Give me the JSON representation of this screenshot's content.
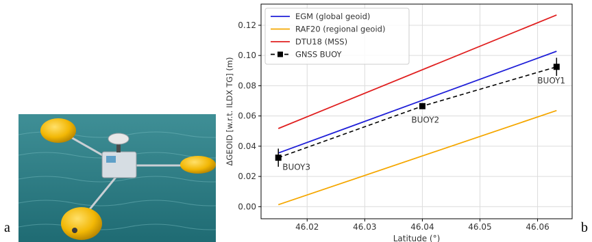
{
  "panels": {
    "a": "a",
    "b": "b"
  },
  "photo": {
    "subject": "buoy-with-gnss-antenna",
    "colors": {
      "sea": "#2f7f86",
      "float": "#f2b705",
      "housing": "#d6dde3"
    }
  },
  "chart_data": {
    "type": "line",
    "title": "",
    "xlabel": "Latitude (°)",
    "ylabel": "ΔGEOID [w.r.t. ILDX TG] (m)",
    "xlim": [
      46.012,
      46.066
    ],
    "ylim": [
      -0.008,
      0.134
    ],
    "x_ticks": [
      46.02,
      46.03,
      46.04,
      46.05,
      46.06
    ],
    "x_tick_labels": [
      "46.02",
      "46.03",
      "46.04",
      "46.05",
      "46.06"
    ],
    "y_ticks": [
      0.0,
      0.02,
      0.04,
      0.06,
      0.08,
      0.1,
      0.12
    ],
    "y_tick_labels": [
      "0.00",
      "0.02",
      "0.04",
      "0.06",
      "0.08",
      "0.10",
      "0.12"
    ],
    "grid": true,
    "legend_position": "top-left",
    "series": [
      {
        "name": "EGM (global geoid)",
        "color": "#1f1fd8",
        "style": "solid",
        "x": [
          46.015,
          46.0633
        ],
        "y": [
          0.0355,
          0.1028
        ]
      },
      {
        "name": "RAF20 (regional geoid)",
        "color": "#f5a700",
        "style": "solid",
        "x": [
          46.015,
          46.0633
        ],
        "y": [
          0.0013,
          0.0636
        ]
      },
      {
        "name": "DTU18 (MSS)",
        "color": "#e01f1f",
        "style": "solid",
        "x": [
          46.015,
          46.0633
        ],
        "y": [
          0.0517,
          0.1268
        ]
      },
      {
        "name": "GNSS BUOY",
        "color": "#000000",
        "style": "dashed",
        "marker": "square",
        "x": [
          46.015,
          46.04,
          46.0633
        ],
        "y": [
          0.0324,
          0.0665,
          0.0925
        ],
        "yerr": [
          0.006,
          0.0015,
          0.006
        ]
      }
    ],
    "annotations": [
      {
        "text": "BUOY3",
        "x": 46.015,
        "y": 0.0324
      },
      {
        "text": "BUOY2",
        "x": 46.04,
        "y": 0.0665
      },
      {
        "text": "BUOY1",
        "x": 46.0633,
        "y": 0.0925
      }
    ]
  }
}
